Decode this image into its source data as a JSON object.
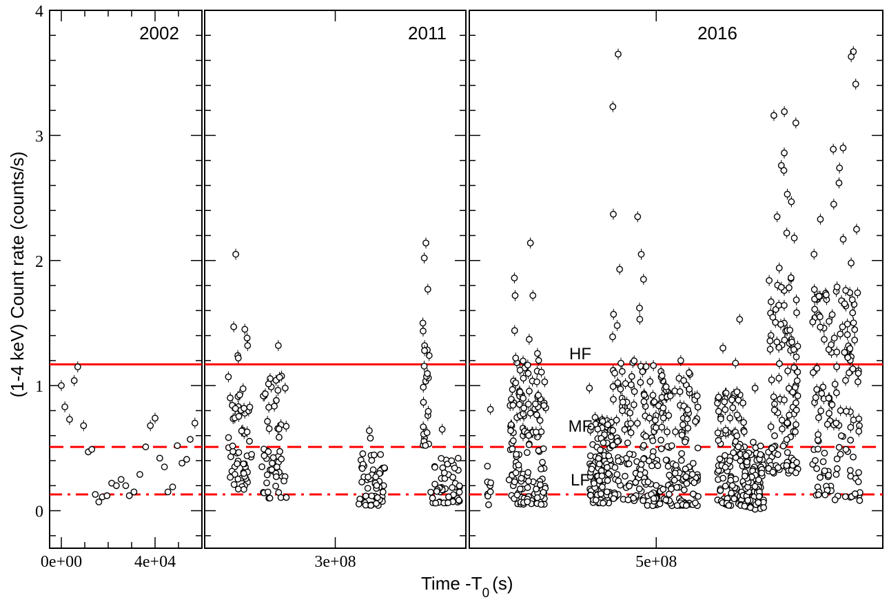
{
  "chart_data": {
    "type": "scatter",
    "ylabel": "(1-4 keV) Count rate (counts/s)",
    "xlabel_main": "Time -T",
    "xlabel_sub": "0",
    "xlabel_unit": "(s)",
    "ylim": [
      -0.3,
      4.0
    ],
    "y_ticks": [
      0,
      1,
      2,
      3,
      4
    ],
    "y_tick_labels": [
      "0",
      "1",
      "2",
      "3",
      "4"
    ],
    "levels": [
      {
        "name": "HF",
        "value": 1.17,
        "style": "solid",
        "color": "#ff0000"
      },
      {
        "name": "MF",
        "value": 0.51,
        "style": "dashed",
        "color": "#ff0000"
      },
      {
        "name": "LF",
        "value": 0.13,
        "style": "dashdot",
        "color": "#ff0000"
      }
    ],
    "panels": [
      {
        "title": "2002",
        "xlim": [
          -5000,
          60000
        ],
        "x_ticks": [
          0,
          40000
        ],
        "x_tick_labels": [
          "0e+00",
          "4e+04"
        ],
        "minor_ticks": [
          10000,
          20000,
          30000,
          50000
        ],
        "points": [
          [
            0,
            1.0
          ],
          [
            1500,
            0.83
          ],
          [
            3500,
            0.73
          ],
          [
            5500,
            1.04
          ],
          [
            7000,
            1.15
          ],
          [
            9500,
            0.68
          ],
          [
            11500,
            0.47
          ],
          [
            13000,
            0.49
          ],
          [
            14500,
            0.13
          ],
          [
            16000,
            0.07
          ],
          [
            17500,
            0.11
          ],
          [
            19500,
            0.12
          ],
          [
            21500,
            0.22
          ],
          [
            23500,
            0.2
          ],
          [
            25500,
            0.25
          ],
          [
            27500,
            0.2
          ],
          [
            29000,
            0.12
          ],
          [
            31000,
            0.15
          ],
          [
            33500,
            0.29
          ],
          [
            36000,
            0.51
          ],
          [
            38000,
            0.68
          ],
          [
            40000,
            0.74
          ],
          [
            42000,
            0.42
          ],
          [
            44000,
            0.35
          ],
          [
            45500,
            0.15
          ],
          [
            47500,
            0.19
          ],
          [
            49500,
            0.52
          ],
          [
            51500,
            0.38
          ],
          [
            53500,
            0.41
          ],
          [
            55000,
            0.57
          ],
          [
            57000,
            0.7
          ]
        ]
      },
      {
        "title": "2011",
        "xlim": [
          200000000,
          400000000
        ],
        "x_ticks": [
          300000000
        ],
        "x_tick_labels": [
          "3e+08"
        ],
        "minor_ticks": [],
        "clusters": [
          {
            "x0": 218000000,
            "x1": 236000000,
            "n": 55,
            "ymin": 0.17,
            "ymax": 0.98,
            "peaks": [
              1.47,
              1.38,
              1.24,
              1.22,
              1.07,
              2.05,
              1.45,
              1.32
            ]
          },
          {
            "x0": 243000000,
            "x1": 263000000,
            "n": 55,
            "ymin": 0.1,
            "ymax": 1.08,
            "peaks": [
              1.32
            ]
          },
          {
            "x0": 318000000,
            "x1": 338000000,
            "n": 55,
            "ymin": 0.04,
            "ymax": 0.46,
            "peaks": [
              0.64,
              0.58
            ]
          },
          {
            "x0": 367000000,
            "x1": 372000000,
            "n": 22,
            "ymin": 0.52,
            "ymax": 1.55,
            "peaks": [
              2.14,
              2.02,
              1.77,
              1.5,
              1.28
            ]
          },
          {
            "x0": 373000000,
            "x1": 396000000,
            "n": 50,
            "ymin": 0.06,
            "ymax": 0.44,
            "peaks": [
              0.65
            ]
          }
        ]
      },
      {
        "title": "2016",
        "xlim": [
          335000000,
          700000000
        ],
        "x_ticks": [
          500000000
        ],
        "x_tick_labels": [
          "5e+08"
        ],
        "minor_ticks": [],
        "clusters": [
          {
            "x0": 351000000,
            "x1": 354000000,
            "n": 10,
            "ymin": 0.04,
            "ymax": 0.45,
            "peaks": [
              0.81
            ]
          },
          {
            "x0": 370000000,
            "x1": 384000000,
            "n": 70,
            "ymin": 0.05,
            "ymax": 1.2,
            "peaks": [
              1.86,
              1.72,
              1.44,
              1.22
            ]
          },
          {
            "x0": 386000000,
            "x1": 403000000,
            "n": 70,
            "ymin": 0.05,
            "ymax": 1.32,
            "peaks": [
              2.14,
              1.72,
              1.37
            ]
          },
          {
            "x0": 441000000,
            "x1": 461000000,
            "n": 110,
            "ymin": 0.06,
            "ymax": 0.75,
            "peaks": [
              0.98
            ]
          },
          {
            "x0": 461000000,
            "x1": 492000000,
            "n": 110,
            "ymin": 0.08,
            "ymax": 1.25,
            "peaks": [
              3.65,
              3.23,
              2.37,
              2.35,
              2.05,
              1.93,
              1.85,
              1.62,
              1.57,
              1.53,
              1.48,
              1.39
            ]
          },
          {
            "x0": 492000000,
            "x1": 537000000,
            "n": 170,
            "ymin": 0.04,
            "ymax": 1.12,
            "peaks": [
              1.2,
              1.16,
              1.08
            ]
          },
          {
            "x0": 554000000,
            "x1": 578000000,
            "n": 110,
            "ymin": 0.04,
            "ymax": 0.98,
            "peaks": [
              1.53,
              1.3,
              1.18
            ]
          },
          {
            "x0": 578000000,
            "x1": 595000000,
            "n": 90,
            "ymin": 0.01,
            "ymax": 0.55,
            "peaks": [
              0.98
            ]
          },
          {
            "x0": 599000000,
            "x1": 625000000,
            "n": 110,
            "ymin": 0.3,
            "ymax": 1.9,
            "peaks": [
              3.19,
              3.16,
              3.1,
              2.86,
              2.76,
              2.72,
              2.53,
              2.47,
              2.35,
              2.22,
              2.18,
              1.94
            ]
          },
          {
            "x0": 638000000,
            "x1": 680000000,
            "n": 140,
            "ymin": 0.08,
            "ymax": 1.8,
            "peaks": [
              3.67,
              3.63,
              3.41,
              2.9,
              2.89,
              2.74,
              2.62,
              2.45,
              2.33,
              2.25,
              2.17,
              2.05,
              1.98
            ]
          }
        ]
      }
    ]
  }
}
